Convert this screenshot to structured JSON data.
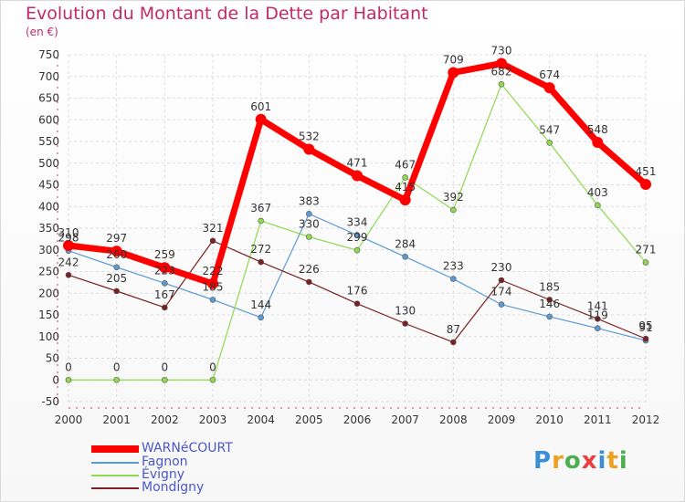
{
  "title": "Evolution du Montant de la Dette par Habitant",
  "unit": "(en €)",
  "logo": "Proxiti",
  "chart_data": {
    "type": "line",
    "title": "Evolution du Montant de la Dette par Habitant",
    "ylabel": "(en €)",
    "ylim": [
      -50,
      750
    ],
    "yticks": [
      -50,
      0,
      50,
      100,
      150,
      200,
      250,
      300,
      350,
      400,
      450,
      500,
      550,
      600,
      650,
      700,
      750
    ],
    "categories": [
      "2000",
      "2001",
      "2002",
      "2003",
      "2004",
      "2005",
      "2006",
      "2007",
      "2008",
      "2009",
      "2010",
      "2011",
      "2012"
    ],
    "grid": true,
    "legend_position": "bottom-left",
    "series": [
      {
        "name": "WARNéCOURT",
        "color": "#ff0000",
        "values": [
          310,
          297,
          259,
          222,
          601,
          532,
          471,
          415,
          709,
          730,
          674,
          548,
          451
        ],
        "labels": [
          "310",
          "297",
          "259",
          "222",
          "601",
          "532",
          "471",
          "415",
          "709",
          "730",
          "674",
          "548",
          "451"
        ]
      },
      {
        "name": "Fagnon",
        "color": "#5b9bd5",
        "values": [
          298,
          260,
          223,
          185,
          144,
          383,
          334,
          284,
          233,
          174,
          146,
          119,
          91
        ],
        "labels": [
          "298",
          "260",
          "223",
          "185",
          "144",
          "383",
          "334",
          "284",
          "233",
          "174",
          "146",
          "119",
          "91"
        ]
      },
      {
        "name": "Évigny",
        "color": "#8fd94f",
        "values": [
          0,
          0,
          0,
          0,
          367,
          330,
          299,
          467,
          392,
          682,
          547,
          403,
          271
        ],
        "labels": [
          "0",
          "0",
          "0",
          "0",
          "367",
          "330",
          "299",
          "467",
          "392",
          "682",
          "547",
          "403",
          "271"
        ]
      },
      {
        "name": "Mondigny",
        "color": "#7b2020",
        "values": [
          242,
          205,
          167,
          321,
          272,
          226,
          176,
          130,
          87,
          230,
          185,
          141,
          95
        ],
        "labels": [
          "242",
          "205",
          "167",
          "321",
          "272",
          "226",
          "176",
          "130",
          "87",
          "230",
          "185",
          "141",
          "95"
        ]
      }
    ]
  }
}
